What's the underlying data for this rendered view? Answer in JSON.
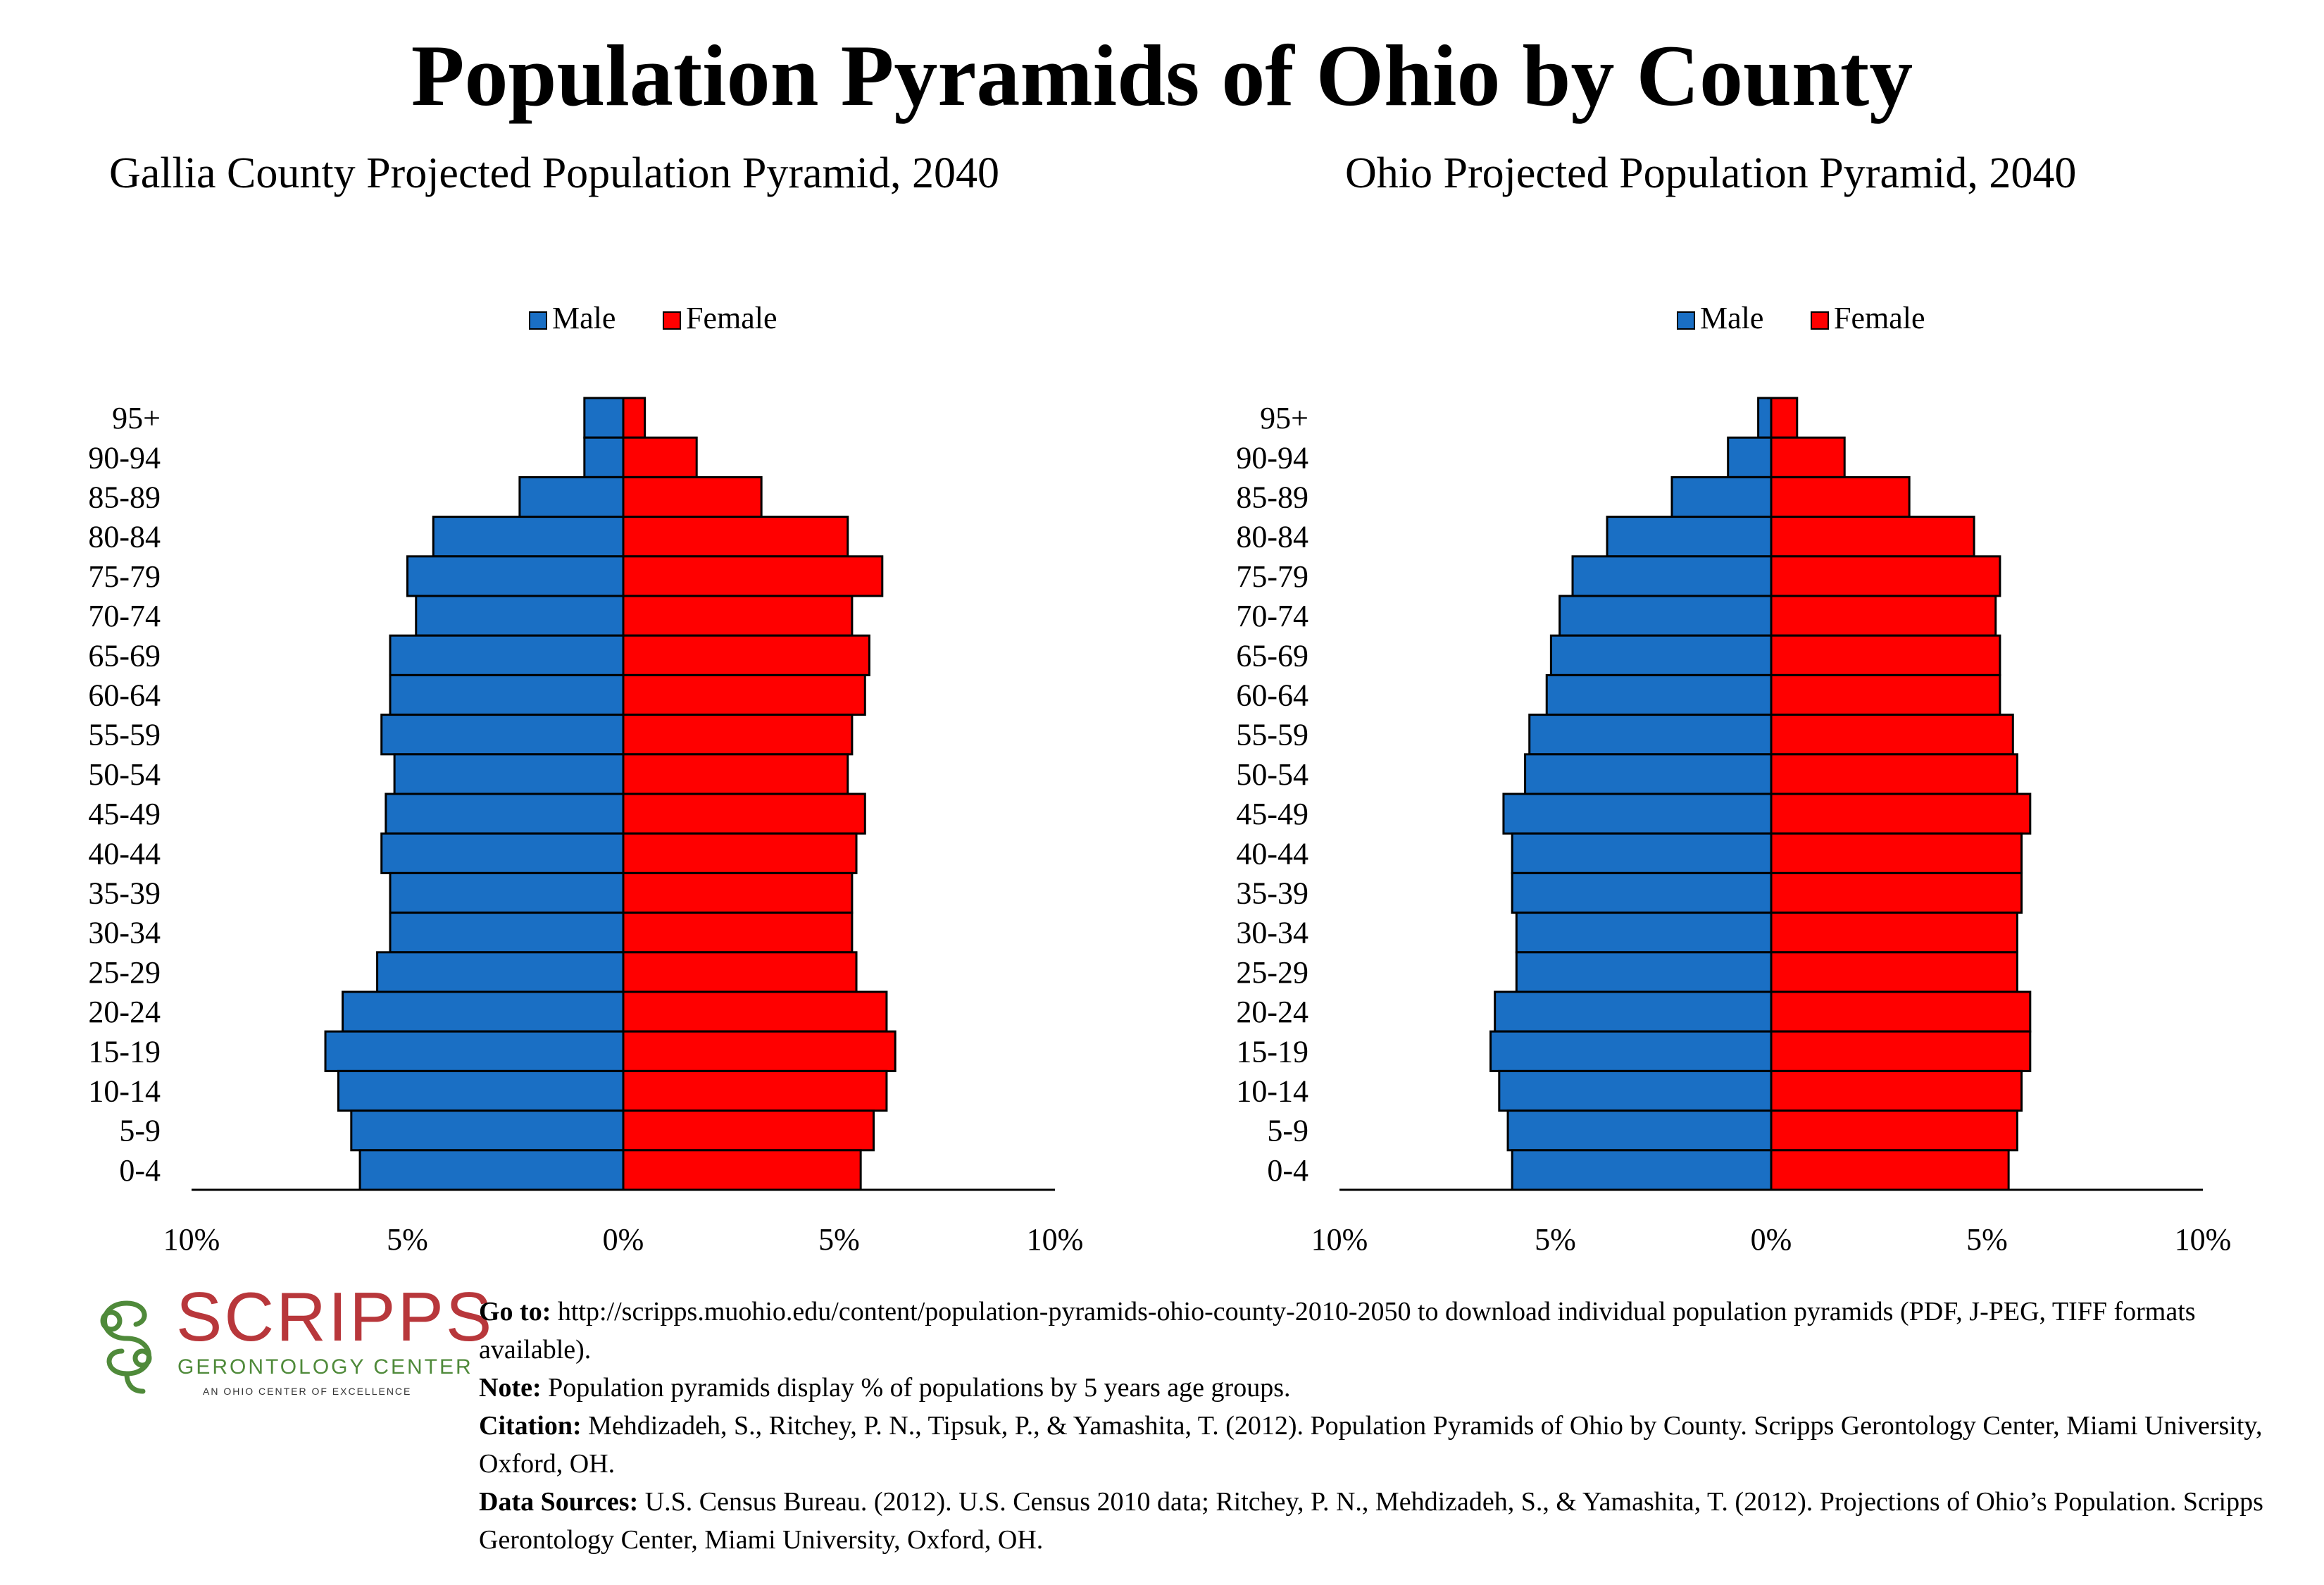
{
  "title": "Population Pyramids of Ohio by County",
  "chart_data": [
    {
      "type": "bar",
      "orientation": "horizontal",
      "title": "Gallia County Projected Population Pyramid, 2040",
      "categories": [
        "95+",
        "90-94",
        "85-89",
        "80-84",
        "75-79",
        "70-74",
        "65-69",
        "60-64",
        "55-59",
        "50-54",
        "45-49",
        "40-44",
        "35-39",
        "30-34",
        "25-29",
        "20-24",
        "15-19",
        "10-14",
        "5-9",
        "0-4"
      ],
      "series": [
        {
          "name": "Male",
          "color": "#1a6fc4",
          "values": [
            0.9,
            0.9,
            2.4,
            4.4,
            5.0,
            4.8,
            5.4,
            5.4,
            5.6,
            5.3,
            5.5,
            5.6,
            5.4,
            5.4,
            5.7,
            6.5,
            6.9,
            6.6,
            6.3,
            6.1
          ]
        },
        {
          "name": "Female",
          "color": "#ff0000",
          "values": [
            0.5,
            1.7,
            3.2,
            5.2,
            6.0,
            5.3,
            5.7,
            5.6,
            5.3,
            5.2,
            5.6,
            5.4,
            5.3,
            5.3,
            5.4,
            6.1,
            6.3,
            6.1,
            5.8,
            5.5
          ]
        }
      ],
      "x_ticks": [
        "10%",
        "5%",
        "0%",
        "5%",
        "10%"
      ],
      "xlim": [
        -10,
        10
      ],
      "legend": "top-center"
    },
    {
      "type": "bar",
      "orientation": "horizontal",
      "title": "Ohio Projected Population Pyramid, 2040",
      "categories": [
        "95+",
        "90-94",
        "85-89",
        "80-84",
        "75-79",
        "70-74",
        "65-69",
        "60-64",
        "55-59",
        "50-54",
        "45-49",
        "40-44",
        "35-39",
        "30-34",
        "25-29",
        "20-24",
        "15-19",
        "10-14",
        "5-9",
        "0-4"
      ],
      "series": [
        {
          "name": "Male",
          "color": "#1a6fc4",
          "values": [
            0.3,
            1.0,
            2.3,
            3.8,
            4.6,
            4.9,
            5.1,
            5.2,
            5.6,
            5.7,
            6.2,
            6.0,
            6.0,
            5.9,
            5.9,
            6.4,
            6.5,
            6.3,
            6.1,
            6.0
          ]
        },
        {
          "name": "Female",
          "color": "#ff0000",
          "values": [
            0.6,
            1.7,
            3.2,
            4.7,
            5.3,
            5.2,
            5.3,
            5.3,
            5.6,
            5.7,
            6.0,
            5.8,
            5.8,
            5.7,
            5.7,
            6.0,
            6.0,
            5.8,
            5.7,
            5.5
          ]
        }
      ],
      "x_ticks": [
        "10%",
        "5%",
        "0%",
        "5%",
        "10%"
      ],
      "xlim": [
        -10,
        10
      ],
      "legend": "top-center"
    }
  ],
  "logo": {
    "wordmark": "SCRIPPS",
    "subtitle": "GERONTOLOGY CENTER",
    "tagline": "AN OHIO CENTER OF EXCELLENCE"
  },
  "footer": {
    "goto_label": "Go to:",
    "goto_text": "http://scripps.muohio.edu/content/population-pyramids-ohio-county-2010-2050 to download individual population pyramids (PDF, J-PEG, TIFF formats available).",
    "note_label": "Note:",
    "note_text": "Population pyramids display % of populations by 5 years age groups.",
    "citation_label": "Citation:",
    "citation_text": "Mehdizadeh, S., Ritchey, P. N., Tipsuk, P., & Yamashita, T. (2012). Population Pyramids of Ohio by County. Scripps Gerontology Center, Miami University, Oxford, OH.",
    "sources_label": "Data Sources:",
    "sources_text": "U.S. Census Bureau. (2012). U.S. Census 2010 data; Ritchey, P. N., Mehdizadeh, S., & Yamashita, T. (2012). Projections of Ohio’s Population. Scripps Gerontology Center, Miami University, Oxford, OH."
  }
}
